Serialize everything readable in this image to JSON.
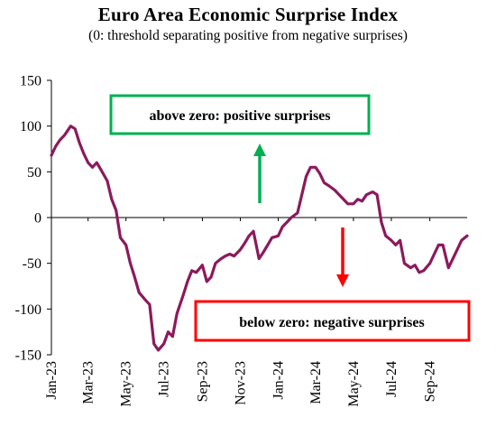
{
  "chart_data": {
    "type": "line",
    "title": "Euro Area Economic Surprise Index",
    "subtitle": "(0: threshold separating positive from negative surprises)",
    "xlabel": "",
    "ylabel": "",
    "ylim": [
      -150,
      150
    ],
    "yticks": [
      150,
      100,
      50,
      0,
      -50,
      -100,
      -150
    ],
    "xlim": [
      "2023-01-01",
      "2024-10-31"
    ],
    "xtick_labels": [
      "Jan-23",
      "Mar-23",
      "May-23",
      "Jul-23",
      "Sep-23",
      "Nov-23",
      "Jan-24",
      "Mar-24",
      "May-24",
      "Jul-24",
      "Sep-24"
    ],
    "xtick_dates": [
      "2023-01-01",
      "2023-03-01",
      "2023-05-01",
      "2023-07-01",
      "2023-09-01",
      "2023-11-01",
      "2024-01-01",
      "2024-03-01",
      "2024-05-01",
      "2024-07-01",
      "2024-09-01"
    ],
    "grid": false,
    "line_color": "#8B1A5C",
    "series": [
      {
        "x": [
          "2023-01-01",
          "2023-01-08",
          "2023-01-15",
          "2023-01-22",
          "2023-02-01",
          "2023-02-08",
          "2023-02-15",
          "2023-02-22",
          "2023-03-01",
          "2023-03-08",
          "2023-03-15",
          "2023-03-22",
          "2023-04-01",
          "2023-04-08",
          "2023-04-15",
          "2023-04-22",
          "2023-05-01",
          "2023-05-08",
          "2023-05-15",
          "2023-05-22",
          "2023-06-01",
          "2023-06-08",
          "2023-06-15",
          "2023-06-22",
          "2023-07-01",
          "2023-07-08",
          "2023-07-15",
          "2023-07-22",
          "2023-08-01",
          "2023-08-08",
          "2023-08-15",
          "2023-08-22",
          "2023-09-01",
          "2023-09-08",
          "2023-09-15",
          "2023-09-22",
          "2023-10-01",
          "2023-10-08",
          "2023-10-15",
          "2023-10-22",
          "2023-11-01",
          "2023-11-08",
          "2023-11-15",
          "2023-11-22",
          "2023-12-01",
          "2023-12-08",
          "2023-12-15",
          "2023-12-22",
          "2024-01-01",
          "2024-01-08",
          "2024-01-15",
          "2024-01-22",
          "2024-02-01",
          "2024-02-08",
          "2024-02-15",
          "2024-02-22",
          "2024-03-01",
          "2024-03-08",
          "2024-03-15",
          "2024-03-22",
          "2024-04-01",
          "2024-04-08",
          "2024-04-15",
          "2024-04-22",
          "2024-05-01",
          "2024-05-08",
          "2024-05-15",
          "2024-05-22",
          "2024-06-01",
          "2024-06-08",
          "2024-06-15",
          "2024-06-22",
          "2024-07-01",
          "2024-07-08",
          "2024-07-15",
          "2024-07-22",
          "2024-08-01",
          "2024-08-08",
          "2024-08-15",
          "2024-08-22",
          "2024-09-01",
          "2024-09-08",
          "2024-09-15",
          "2024-09-22",
          "2024-10-01",
          "2024-10-08",
          "2024-10-15",
          "2024-10-22",
          "2024-10-31"
        ],
        "values": [
          68,
          78,
          85,
          90,
          100,
          97,
          82,
          70,
          60,
          55,
          60,
          52,
          40,
          20,
          8,
          -22,
          -30,
          -50,
          -65,
          -82,
          -90,
          -95,
          -138,
          -145,
          -138,
          -125,
          -130,
          -105,
          -85,
          -70,
          -58,
          -60,
          -52,
          -70,
          -65,
          -50,
          -45,
          -42,
          -40,
          -42,
          -35,
          -28,
          -20,
          -15,
          -45,
          -38,
          -30,
          -22,
          -20,
          -10,
          -5,
          0,
          5,
          25,
          45,
          55,
          55,
          48,
          38,
          35,
          30,
          25,
          20,
          15,
          15,
          20,
          18,
          25,
          28,
          25,
          -5,
          -20,
          -25,
          -30,
          -25,
          -50,
          -55,
          -52,
          -60,
          -58,
          -50,
          -40,
          -30,
          -30,
          -55,
          -45,
          -35,
          -25,
          -20
        ]
      }
    ],
    "annotations": [
      {
        "text": "above  zero: positive surprises",
        "border_color": "#00B050",
        "arrow_color": "#00B050",
        "arrow": "up"
      },
      {
        "text": "below zero: negative surprises",
        "border_color": "#FF0000",
        "arrow_color": "#FF0000",
        "arrow": "down"
      }
    ]
  }
}
